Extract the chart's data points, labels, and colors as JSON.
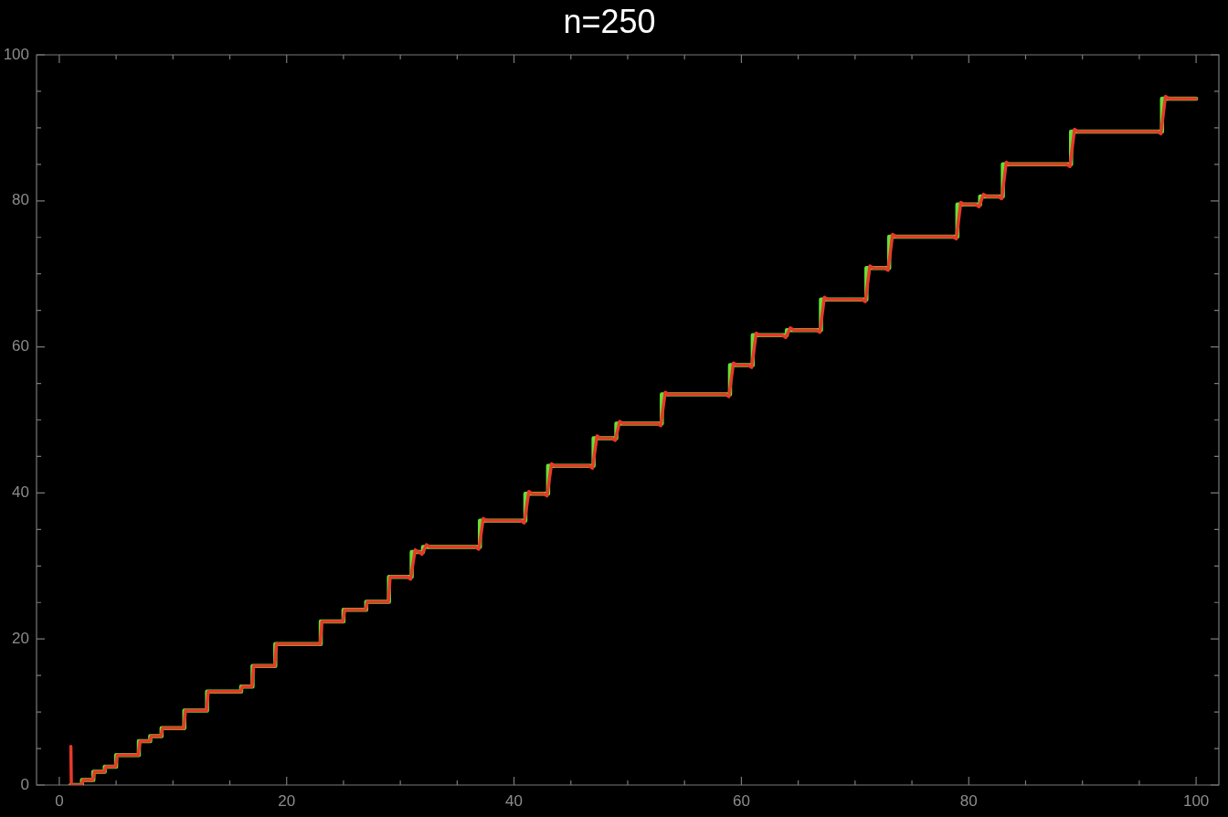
{
  "chart_data": {
    "type": "line",
    "title": "n=250",
    "marker": "none",
    "xlim": [
      -2,
      102
    ],
    "ylim": [
      0,
      100
    ],
    "xticks": [
      0,
      {
        "value": 5,
        "label": null
      },
      {
        "value": 10,
        "label": null
      },
      {
        "value": 15,
        "label": null
      },
      20,
      {
        "value": 25,
        "label": null
      },
      {
        "value": 30,
        "label": null
      },
      {
        "value": 35,
        "label": null
      },
      40,
      {
        "value": 45,
        "label": null
      },
      {
        "value": 50,
        "label": null
      },
      {
        "value": 55,
        "label": null
      },
      60,
      {
        "value": 65,
        "label": null
      },
      {
        "value": 70,
        "label": null
      },
      {
        "value": 75,
        "label": null
      },
      80,
      {
        "value": 85,
        "label": null
      },
      {
        "value": 90,
        "label": null
      },
      {
        "value": 95,
        "label": null
      },
      100
    ],
    "yticks": [
      0,
      {
        "value": 5,
        "label": null
      },
      {
        "value": 10,
        "label": null
      },
      {
        "value": 15,
        "label": null
      },
      20,
      {
        "value": 25,
        "label": null
      },
      {
        "value": 30,
        "label": null
      },
      {
        "value": 35,
        "label": null
      },
      40,
      {
        "value": 45,
        "label": null
      },
      {
        "value": 50,
        "label": null
      },
      {
        "value": 55,
        "label": null
      },
      60,
      {
        "value": 65,
        "label": null
      },
      {
        "value": 70,
        "label": null
      },
      {
        "value": 75,
        "label": null
      },
      80,
      {
        "value": 85,
        "label": null
      },
      {
        "value": 90,
        "label": null
      },
      {
        "value": 95,
        "label": null
      },
      100
    ],
    "series": [
      {
        "type": "step",
        "color": "#66e033",
        "x": [
          1,
          2,
          3,
          4,
          5,
          7,
          8,
          9,
          11,
          13,
          16,
          17,
          19,
          23,
          25,
          27,
          29,
          31,
          32,
          37,
          41,
          43,
          47,
          49,
          53,
          59,
          61,
          64,
          67,
          71,
          73,
          79,
          81,
          83,
          89,
          97,
          100
        ],
        "values": [
          0,
          0.7,
          1.8,
          2.5,
          4.1,
          6.0,
          6.7,
          7.8,
          10.2,
          12.8,
          13.5,
          16.3,
          19.3,
          22.4,
          24.0,
          25.1,
          28.5,
          31.9,
          32.6,
          36.2,
          39.9,
          43.7,
          47.5,
          49.5,
          53.5,
          57.5,
          61.6,
          62.3,
          66.5,
          70.8,
          75.1,
          79.5,
          80.6,
          85.0,
          89.5,
          94.0,
          94.0
        ]
      },
      {
        "type": "line",
        "color": "#e8392a",
        "x": [
          1.02,
          1.06,
          1.95,
          2.1,
          2.95,
          3.1,
          3.95,
          4.1,
          4.95,
          5.1,
          6.95,
          7.1,
          7.95,
          8.1,
          8.95,
          9.1,
          10.95,
          11.1,
          12.95,
          13.1,
          15.95,
          16.1,
          16.95,
          17.1,
          18.95,
          19.1,
          22.95,
          23.1,
          24.95,
          25.1,
          26.95,
          27.1,
          28.95,
          29.1,
          30.6,
          30.9,
          31.3,
          31.6,
          31.7,
          31.9,
          32.3,
          32.6,
          36.6,
          36.9,
          37.3,
          37.6,
          40.6,
          40.9,
          41.3,
          41.6,
          42.6,
          42.9,
          43.3,
          43.6,
          46.6,
          46.9,
          47.3,
          47.6,
          48.6,
          48.9,
          49.3,
          49.6,
          52.6,
          52.9,
          53.3,
          53.6,
          58.6,
          58.9,
          59.3,
          59.6,
          60.6,
          60.9,
          61.3,
          61.6,
          63.6,
          63.9,
          64.3,
          64.6,
          66.6,
          66.9,
          67.3,
          67.6,
          70.6,
          70.9,
          71.3,
          71.6,
          72.6,
          72.9,
          73.3,
          73.6,
          78.6,
          78.9,
          79.3,
          79.6,
          80.6,
          80.9,
          81.3,
          81.6,
          82.6,
          82.9,
          83.3,
          83.6,
          88.6,
          88.9,
          89.3,
          89.6,
          96.6,
          96.9,
          97.3,
          97.6,
          100
        ],
        "values": [
          5.3,
          0,
          0,
          0.7,
          0.7,
          1.8,
          1.8,
          2.5,
          2.5,
          4.1,
          4.1,
          6.0,
          6.0,
          6.7,
          6.7,
          7.8,
          7.8,
          10.2,
          10.2,
          12.8,
          12.8,
          13.5,
          13.5,
          16.3,
          16.3,
          19.3,
          19.3,
          22.4,
          22.4,
          24.0,
          24.0,
          25.1,
          25.1,
          28.5,
          28.5,
          28.2,
          32.2,
          31.9,
          31.9,
          31.6,
          32.9,
          32.6,
          32.6,
          32.3,
          36.5,
          36.2,
          36.2,
          35.9,
          40.2,
          39.9,
          39.9,
          39.6,
          44.0,
          43.7,
          43.7,
          43.4,
          47.8,
          47.5,
          47.5,
          47.2,
          49.8,
          49.5,
          49.5,
          49.2,
          53.8,
          53.5,
          53.5,
          53.2,
          57.8,
          57.5,
          57.5,
          57.2,
          61.9,
          61.6,
          61.6,
          61.3,
          62.6,
          62.3,
          62.3,
          62.0,
          66.8,
          66.5,
          66.5,
          66.2,
          71.1,
          70.8,
          70.8,
          70.5,
          75.4,
          75.1,
          75.1,
          74.8,
          79.8,
          79.5,
          79.5,
          79.2,
          80.9,
          80.6,
          80.6,
          80.3,
          85.3,
          85.0,
          85.0,
          84.7,
          89.8,
          89.5,
          89.5,
          89.2,
          94.3,
          94.0,
          94.0
        ]
      }
    ]
  }
}
